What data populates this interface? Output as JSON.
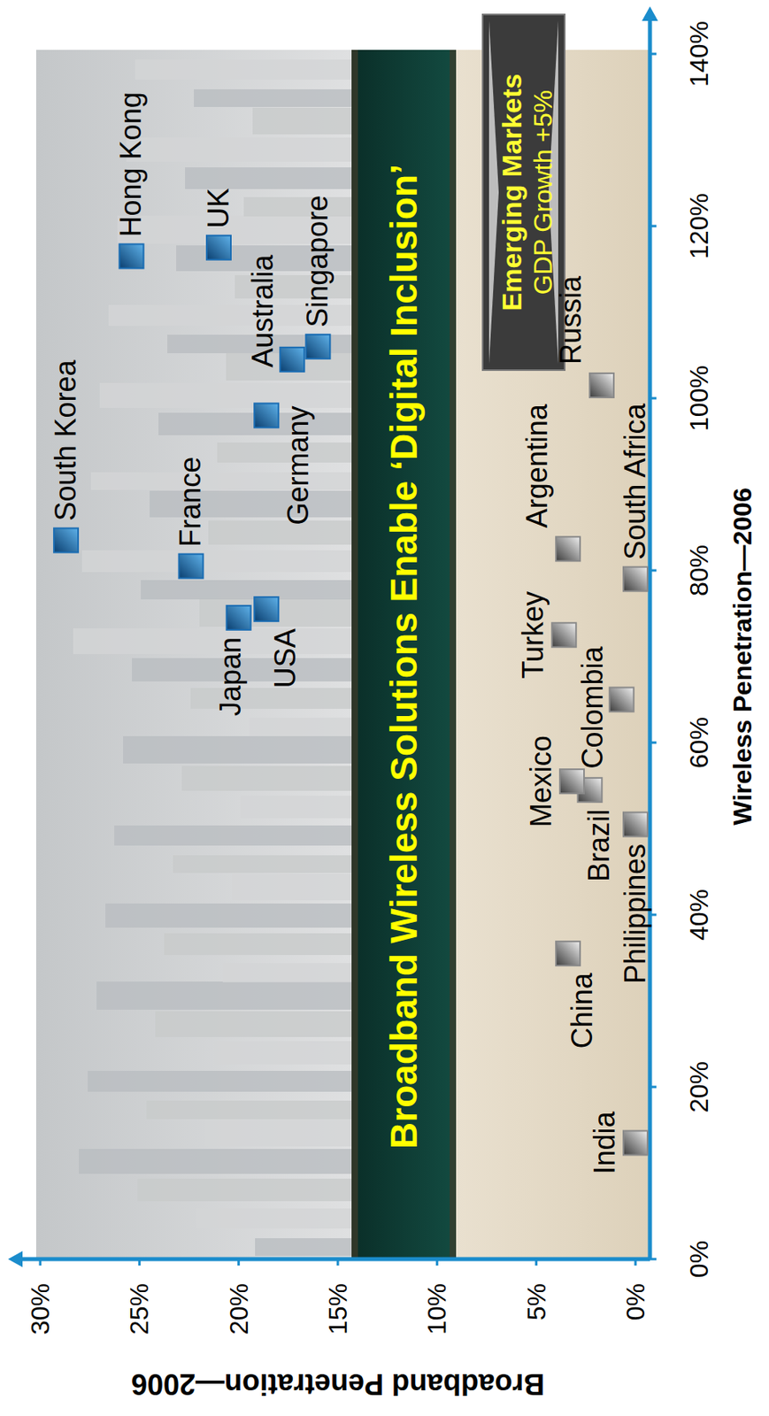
{
  "chart_data": {
    "type": "scatter",
    "x_label": "Wireless Penetration—2006",
    "y_label": "Broadband Penetration—2006",
    "xlim": [
      0,
      140
    ],
    "xticks": [
      {
        "value": 0,
        "label": "0%"
      },
      {
        "value": 20,
        "label": "20%"
      },
      {
        "value": 40,
        "label": "40%"
      },
      {
        "value": 60,
        "label": "60%"
      },
      {
        "value": 80,
        "label": "80%"
      },
      {
        "value": 100,
        "label": "100%"
      },
      {
        "value": 120,
        "label": "120%"
      },
      {
        "value": 140,
        "label": "140%"
      }
    ],
    "ylim": [
      0,
      30
    ],
    "yticks": [
      {
        "value": 0,
        "label": "0%"
      },
      {
        "value": 5,
        "label": "5%"
      },
      {
        "value": 10,
        "label": "10%"
      },
      {
        "value": 15,
        "label": "15%"
      },
      {
        "value": 20,
        "label": "20%"
      },
      {
        "value": 25,
        "label": "25%"
      },
      {
        "value": 30,
        "label": "30%"
      }
    ],
    "grid": false,
    "series": [
      {
        "color": "#1b6db3",
        "marker": "square",
        "labels": [
          "South Korea",
          "Hong Kong",
          "UK",
          "France",
          "Japan",
          "USA",
          "Germany",
          "Australia",
          "Singapore"
        ],
        "x": [
          83.5,
          116.5,
          117.5,
          80.5,
          74.5,
          75.5,
          98,
          104.5,
          106
        ],
        "y": [
          28.7,
          25.4,
          21,
          22.4,
          20,
          18.6,
          18.6,
          17.3,
          16
        ]
      },
      {
        "color": "#8a8a8a",
        "marker": "square",
        "labels": [
          "India",
          "China",
          "Philippines",
          "Brazil",
          "Mexico",
          "Colombia",
          "Turkey",
          "South Africa",
          "Argentina",
          "Russia"
        ],
        "x": [
          13.5,
          35.5,
          50.5,
          54.5,
          55.5,
          65,
          72.5,
          79,
          82.5,
          101.5
        ],
        "y": [
          0,
          3.4,
          0,
          2.3,
          3.2,
          0.7,
          3.6,
          0,
          3.4,
          1.7
        ]
      }
    ],
    "annotations": [
      "Broadband Wireless Solutions Enable ‘Digital Inclusion’",
      "Emerging Markets",
      "GDP Growth +5%"
    ]
  }
}
